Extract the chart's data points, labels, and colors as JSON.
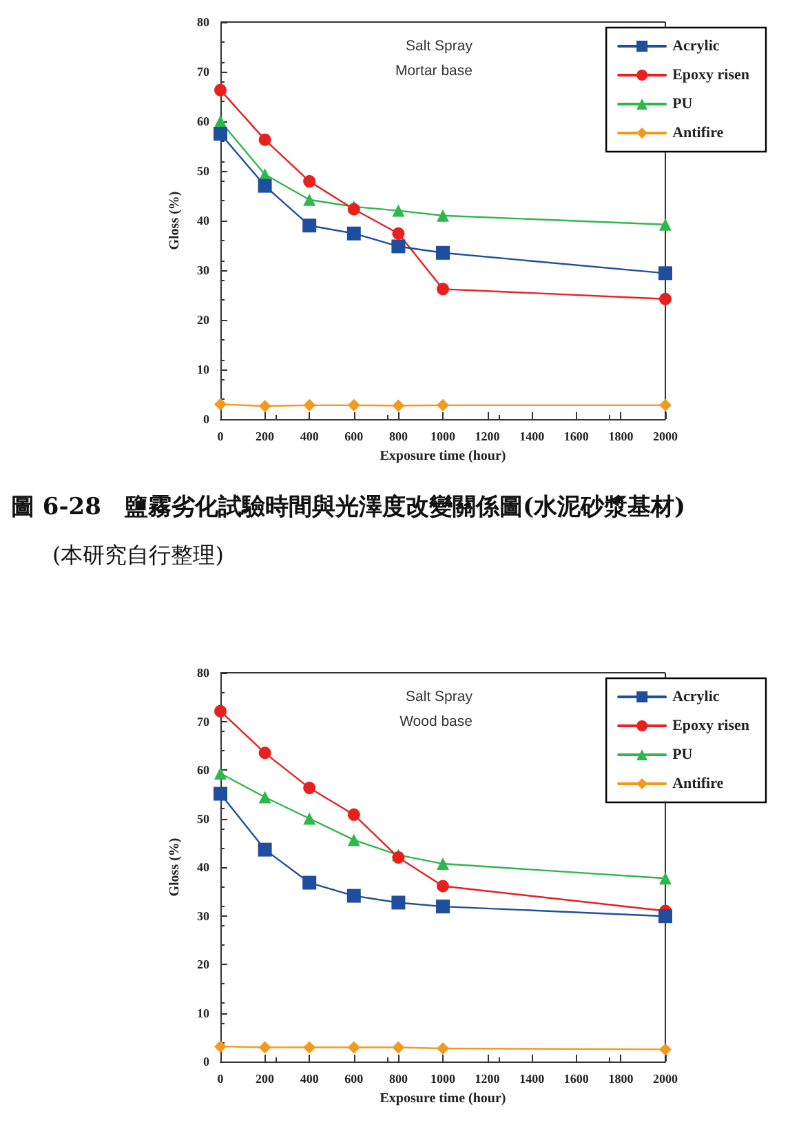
{
  "chart_data": [
    {
      "type": "line",
      "title": "圖 6-28　鹽霧劣化試驗時間與光澤度改變關係圖(水泥砂漿基材)",
      "subtitle": "(本研究自行整理)",
      "xlabel": "Exposure time (hour)",
      "ylabel": "Gloss (%)",
      "annotations": [
        "Salt Spray",
        "Mortar base"
      ],
      "x": [
        0,
        200,
        400,
        600,
        800,
        1000,
        2000
      ],
      "series": [
        {
          "name": "Acrylic",
          "color": "#1f4e9e",
          "marker": "square",
          "values": [
            57.5,
            47,
            39,
            37.4,
            34.8,
            33.5,
            29.4
          ]
        },
        {
          "name": "Epoxy risen",
          "color": "#e8201e",
          "marker": "circle",
          "values": [
            66.3,
            56.3,
            47.9,
            42.3,
            37.4,
            26.2,
            24.2
          ]
        },
        {
          "name": "PU",
          "color": "#2db84a",
          "marker": "triangle",
          "values": [
            60,
            49.3,
            44.2,
            42.8,
            42,
            41,
            39.2
          ]
        },
        {
          "name": "Antifire",
          "color": "#f39a1e",
          "marker": "diamond",
          "values": [
            3,
            2.6,
            2.8,
            2.8,
            2.7,
            2.8,
            2.8
          ]
        }
      ],
      "xlim": [
        0,
        2000
      ],
      "xticks": [
        0,
        200,
        400,
        600,
        800,
        1000,
        1200,
        1400,
        1600,
        1800,
        2000
      ],
      "ylim": [
        0,
        80
      ],
      "yticks": [
        0,
        10,
        20,
        30,
        40,
        50,
        60,
        70,
        80
      ],
      "grid": false,
      "legend": "top right",
      "line_style": "solid"
    },
    {
      "type": "line",
      "xlabel": "Exposure time (hour)",
      "ylabel": "Gloss (%)",
      "annotations": [
        "Salt Spray",
        "Wood base"
      ],
      "x": [
        0,
        200,
        400,
        600,
        800,
        1000,
        2000
      ],
      "series": [
        {
          "name": "Acrylic",
          "color": "#1f4e9e",
          "marker": "square",
          "values": [
            55.1,
            43.6,
            36.8,
            34.1,
            32.7,
            31.9,
            29.9
          ]
        },
        {
          "name": "Epoxy risen",
          "color": "#e8201e",
          "marker": "circle",
          "values": [
            72.1,
            63.5,
            56.3,
            50.8,
            42,
            36.1,
            31
          ]
        },
        {
          "name": "PU",
          "color": "#2db84a",
          "marker": "triangle",
          "values": [
            59.3,
            54.4,
            50,
            45.6,
            42.5,
            40.7,
            37.7
          ]
        },
        {
          "name": "Antifire",
          "color": "#f39a1e",
          "marker": "diamond",
          "values": [
            3.1,
            2.9,
            2.9,
            2.9,
            2.9,
            2.7,
            2.5
          ]
        }
      ],
      "xlim": [
        0,
        2000
      ],
      "xticks": [
        0,
        200,
        400,
        600,
        800,
        1000,
        1200,
        1400,
        1600,
        1800,
        2000
      ],
      "ylim": [
        0,
        80
      ],
      "yticks": [
        0,
        10,
        20,
        30,
        40,
        50,
        60,
        70,
        80
      ],
      "grid": false,
      "legend": "top right",
      "line_style": "solid"
    }
  ]
}
